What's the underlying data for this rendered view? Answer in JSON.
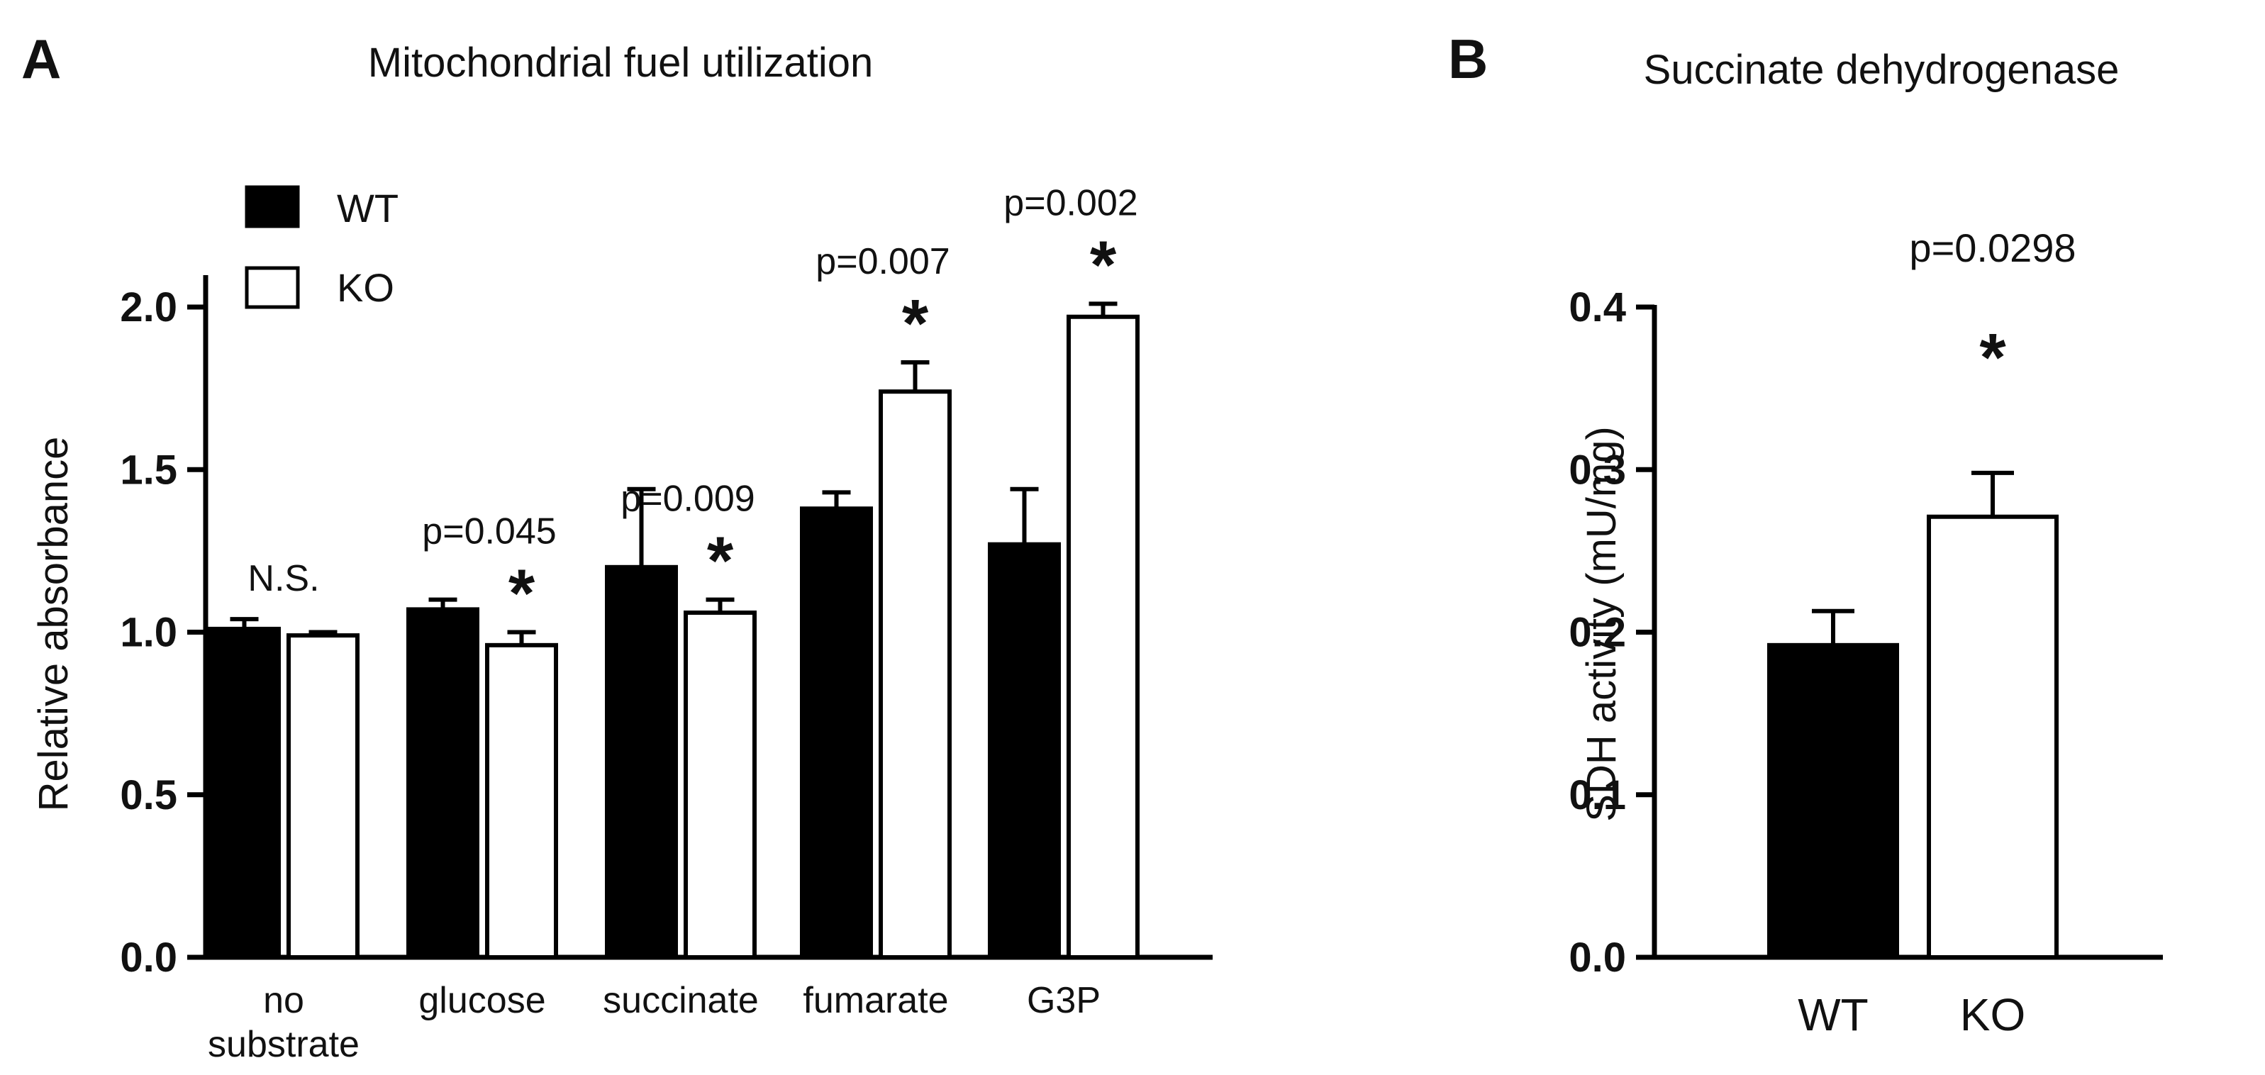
{
  "panels": {
    "a_letter": "A",
    "b_letter": "B"
  },
  "colors": {
    "wt_fill": "#000000",
    "ko_fill": "#ffffff",
    "stroke": "#000000"
  },
  "chart_data": [
    {
      "type": "bar",
      "title": "Mitochondrial fuel utilization",
      "xlabel": "",
      "ylabel": "Relative absorbance",
      "ylim": [
        0,
        2.0
      ],
      "yticks": [
        "0.0",
        "0.5",
        "1.0",
        "1.5",
        "2.0"
      ],
      "categories": [
        [
          "no",
          "substrate"
        ],
        [
          "glucose"
        ],
        [
          "succinate"
        ],
        [
          "fumarate"
        ],
        [
          "G3P"
        ]
      ],
      "series": [
        {
          "name": "WT",
          "values": [
            1.01,
            1.07,
            1.2,
            1.38,
            1.27
          ],
          "errors": [
            0.03,
            0.03,
            0.24,
            0.05,
            0.17
          ]
        },
        {
          "name": "KO",
          "values": [
            0.99,
            0.96,
            1.06,
            1.74,
            1.97
          ],
          "errors": [
            0.01,
            0.04,
            0.04,
            0.09,
            0.04
          ]
        }
      ],
      "legend": [
        "WT",
        "KO"
      ],
      "legend_position": "top-left",
      "annotations": [
        {
          "category": 0,
          "text": "N.S.",
          "star": ""
        },
        {
          "category": 1,
          "text": "p=0.045",
          "star": "*"
        },
        {
          "category": 2,
          "text": "p=0.009",
          "star": "*"
        },
        {
          "category": 3,
          "text": "p=0.007",
          "star": "*"
        },
        {
          "category": 4,
          "text": "p=0.002",
          "star": "*"
        }
      ]
    },
    {
      "type": "bar",
      "title": "Succinate dehydrogenase",
      "xlabel": "",
      "ylabel": "SDH activity (mU/mg)",
      "ylim": [
        0,
        0.4
      ],
      "yticks": [
        "0.0",
        "0.1",
        "0.2",
        "0.3",
        "0.4"
      ],
      "categories": [
        "WT",
        "KO"
      ],
      "values": [
        0.192,
        0.271
      ],
      "errors": [
        0.021,
        0.027
      ],
      "annotations": [
        {
          "text": "p=0.0298",
          "star": "*"
        }
      ]
    }
  ]
}
